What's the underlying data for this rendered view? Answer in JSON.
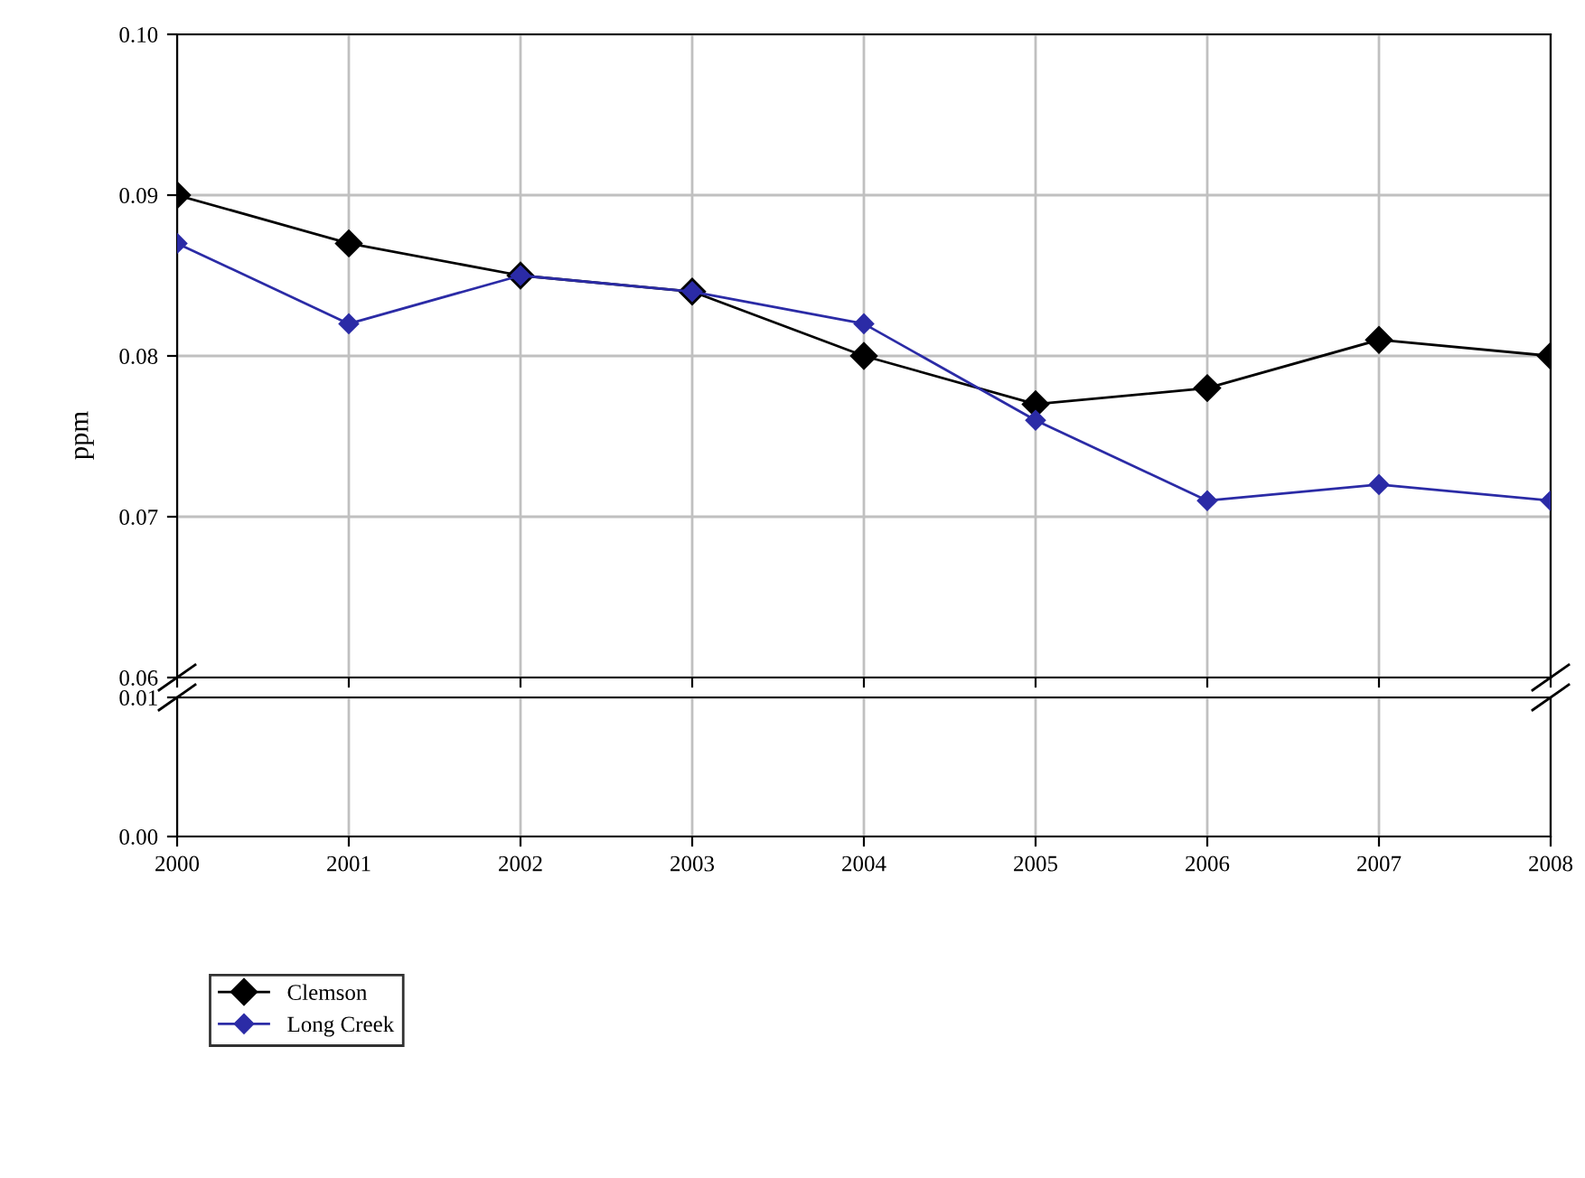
{
  "chart_data": [
    {
      "type": "line",
      "ylabel": "ppm",
      "x": [
        2000,
        2001,
        2002,
        2003,
        2004,
        2005,
        2006,
        2007,
        2008
      ],
      "series": [
        {
          "name": "Clemson",
          "color": "#000000",
          "values": [
            0.09,
            0.087,
            0.085,
            0.084,
            0.08,
            0.077,
            0.078,
            0.081,
            0.08
          ]
        },
        {
          "name": "Long Creek",
          "color": "#2b2ba6",
          "values": [
            0.087,
            0.082,
            0.085,
            0.084,
            0.082,
            0.076,
            0.071,
            0.072,
            0.071
          ]
        }
      ],
      "xlim": [
        2000,
        2008
      ],
      "ylim": [
        0.06,
        0.1
      ],
      "yticks": [
        {
          "value": 0.06,
          "label": "0.06"
        },
        {
          "value": 0.07,
          "label": "0.07"
        },
        {
          "value": 0.08,
          "label": "0.08"
        },
        {
          "value": 0.09,
          "label": "0.09"
        },
        {
          "value": 0.1,
          "label": "0.10"
        }
      ],
      "xticks": [
        2000,
        2001,
        2002,
        2003,
        2004,
        2005,
        2006,
        2007,
        2008
      ],
      "tick_labels": "y",
      "grid": true,
      "legend": "bottom left",
      "marker": "diamond",
      "line_style": "solid"
    },
    {
      "type": "line",
      "xlim": [
        2000,
        2008
      ],
      "ylim": [
        0.0,
        0.01
      ],
      "yticks": [
        {
          "value": 0.0,
          "label": "0.00"
        },
        {
          "value": 0.01,
          "label": "0.01"
        }
      ],
      "xticks": [
        2000,
        2001,
        2002,
        2003,
        2004,
        2005,
        2006,
        2007,
        2008
      ],
      "grid": true
    }
  ]
}
